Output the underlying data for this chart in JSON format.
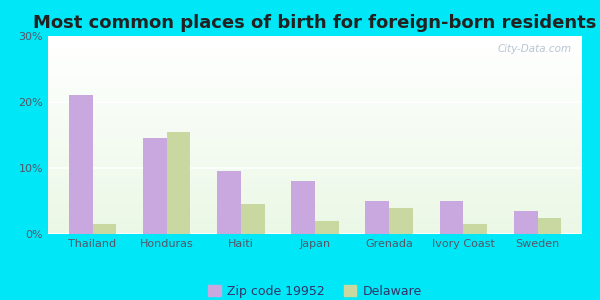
{
  "title": "Most common places of birth for foreign-born residents",
  "categories": [
    "Thailand",
    "Honduras",
    "Haiti",
    "Japan",
    "Grenada",
    "Ivory Coast",
    "Sweden"
  ],
  "zip_values": [
    21.0,
    14.5,
    9.5,
    8.0,
    5.0,
    5.0,
    3.5
  ],
  "state_values": [
    1.5,
    15.5,
    4.5,
    2.0,
    4.0,
    1.5,
    2.5
  ],
  "zip_color": "#c9a8e0",
  "state_color": "#c8d8a0",
  "ylim": [
    0,
    30
  ],
  "yticks": [
    0,
    10,
    20,
    30
  ],
  "legend_zip": "Zip code 19952",
  "legend_state": "Delaware",
  "outer_bg": "#00e8f8",
  "title_fontsize": 13,
  "axis_label_fontsize": 8,
  "legend_fontsize": 9,
  "tick_color": "#555566",
  "watermark": "City-Data.com"
}
